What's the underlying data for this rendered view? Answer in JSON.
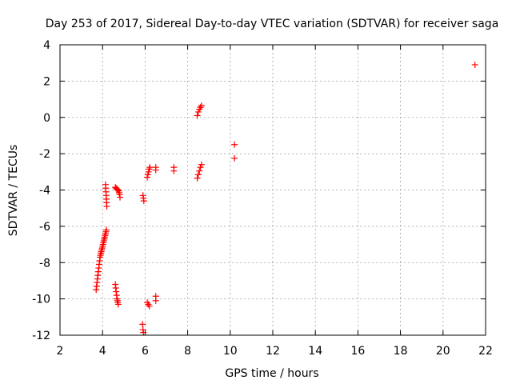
{
  "chart_data": {
    "type": "scatter",
    "title": "Day 253 of 2017, Sidereal Day-to-day VTEC variation (SDTVAR) for receiver saga",
    "xlabel": "GPS time / hours",
    "ylabel": "SDTVAR / TECUs",
    "xlim": [
      2,
      22
    ],
    "ylim": [
      -12,
      4
    ],
    "xticks": [
      2,
      4,
      6,
      8,
      10,
      12,
      14,
      16,
      18,
      20,
      22
    ],
    "yticks": [
      -12,
      -10,
      -8,
      -6,
      -4,
      -2,
      0,
      2,
      4
    ],
    "grid": true,
    "marker": "+",
    "color": "#ff0000",
    "series": [
      {
        "name": "SDTVAR",
        "points": [
          [
            3.7,
            -9.5
          ],
          [
            3.72,
            -9.3
          ],
          [
            3.74,
            -9.1
          ],
          [
            3.76,
            -8.9
          ],
          [
            3.78,
            -8.7
          ],
          [
            3.8,
            -8.5
          ],
          [
            3.82,
            -8.3
          ],
          [
            3.84,
            -8.1
          ],
          [
            3.86,
            -7.9
          ],
          [
            3.88,
            -7.7
          ],
          [
            3.9,
            -7.6
          ],
          [
            3.92,
            -7.5
          ],
          [
            3.94,
            -7.4
          ],
          [
            3.96,
            -7.3
          ],
          [
            3.98,
            -7.2
          ],
          [
            4.0,
            -7.1
          ],
          [
            4.02,
            -7.0
          ],
          [
            4.04,
            -6.9
          ],
          [
            4.06,
            -6.8
          ],
          [
            4.08,
            -6.7
          ],
          [
            4.1,
            -6.6
          ],
          [
            4.12,
            -6.5
          ],
          [
            4.14,
            -6.4
          ],
          [
            4.16,
            -6.3
          ],
          [
            4.18,
            -6.2
          ],
          [
            4.14,
            -3.7
          ],
          [
            4.15,
            -3.9
          ],
          [
            4.16,
            -4.1
          ],
          [
            4.17,
            -4.3
          ],
          [
            4.18,
            -4.5
          ],
          [
            4.19,
            -4.7
          ],
          [
            4.2,
            -4.9
          ],
          [
            4.6,
            -9.2
          ],
          [
            4.62,
            -9.4
          ],
          [
            4.64,
            -9.6
          ],
          [
            4.66,
            -9.8
          ],
          [
            4.68,
            -10.0
          ],
          [
            4.7,
            -10.1
          ],
          [
            4.72,
            -10.2
          ],
          [
            4.74,
            -10.3
          ],
          [
            4.6,
            -3.85
          ],
          [
            4.64,
            -3.9
          ],
          [
            4.68,
            -3.95
          ],
          [
            4.72,
            -4.0
          ],
          [
            4.76,
            -4.05
          ],
          [
            4.78,
            -4.15
          ],
          [
            4.8,
            -4.25
          ],
          [
            4.82,
            -4.4
          ],
          [
            5.9,
            -4.3
          ],
          [
            5.92,
            -4.45
          ],
          [
            5.94,
            -4.6
          ],
          [
            5.88,
            -11.4
          ],
          [
            5.9,
            -11.7
          ],
          [
            5.92,
            -11.85
          ],
          [
            6.1,
            -10.2
          ],
          [
            6.15,
            -10.3
          ],
          [
            6.2,
            -10.4
          ],
          [
            6.1,
            -3.3
          ],
          [
            6.13,
            -3.15
          ],
          [
            6.16,
            -3.0
          ],
          [
            6.19,
            -2.85
          ],
          [
            6.22,
            -2.75
          ],
          [
            6.5,
            -2.75
          ],
          [
            6.5,
            -2.9
          ],
          [
            6.5,
            -9.85
          ],
          [
            6.5,
            -10.1
          ],
          [
            7.35,
            -2.75
          ],
          [
            7.35,
            -2.95
          ],
          [
            8.45,
            -3.35
          ],
          [
            8.5,
            -3.15
          ],
          [
            8.55,
            -2.95
          ],
          [
            8.6,
            -2.75
          ],
          [
            8.65,
            -2.6
          ],
          [
            8.45,
            0.1
          ],
          [
            8.5,
            0.3
          ],
          [
            8.55,
            0.45
          ],
          [
            8.6,
            0.55
          ],
          [
            8.65,
            0.65
          ],
          [
            10.2,
            -1.5
          ],
          [
            10.2,
            -2.25
          ],
          [
            21.5,
            2.9
          ]
        ]
      }
    ]
  }
}
